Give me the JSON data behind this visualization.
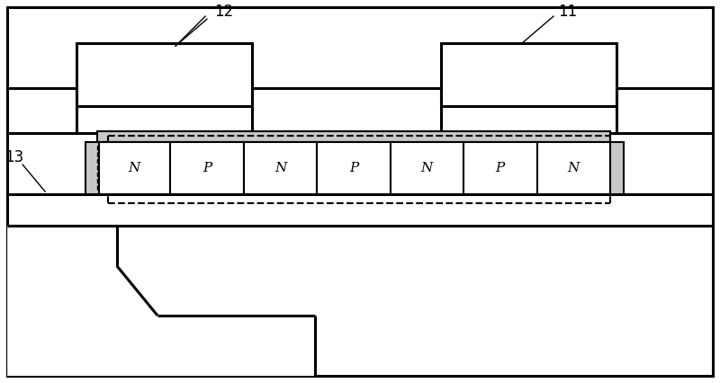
{
  "bg_color": "#ffffff",
  "lc": "#000000",
  "lw_thick": 2.2,
  "lw_med": 1.5,
  "lw_thin": 1.0,
  "pn_labels": [
    "N",
    "P",
    "N",
    "P",
    "N",
    "P",
    "N"
  ],
  "font_size_pn": 11,
  "font_size_label": 12,
  "label_12": "12",
  "label_11": "11",
  "label_13": "13",
  "gray_fill": "#c8c8c8",
  "white_fill": "#ffffff",
  "light_gray": "#e0e0e0"
}
